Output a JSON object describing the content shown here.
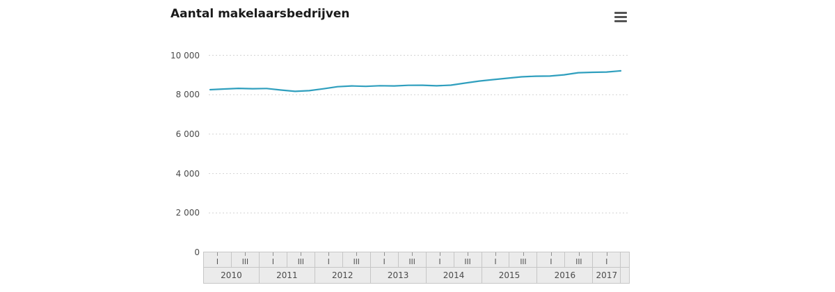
{
  "chart": {
    "title": "Aantal makelaarsbedrijven",
    "export_menu_icon": "hamburger-menu-icon"
  },
  "colors": {
    "series_line": "#2f9fbe",
    "gridline": "#d2d2d2",
    "axis_text": "#4a4a4a",
    "band_background": "#ebebeb",
    "band_border": "#c6c6c6"
  },
  "chart_data": {
    "type": "line",
    "title": "Aantal makelaarsbedrijven",
    "ylabel": "",
    "xlabel": "",
    "ylim": [
      0,
      10000
    ],
    "grid": "dotted horizontal gridlines",
    "legend": "none",
    "yticks": [
      {
        "value": 10000,
        "label": "10 000"
      },
      {
        "value": 8000,
        "label": "8 000"
      },
      {
        "value": 6000,
        "label": "6 000"
      },
      {
        "value": 4000,
        "label": "4 000"
      },
      {
        "value": 2000,
        "label": "2 000"
      },
      {
        "value": 0,
        "label": "0"
      }
    ],
    "x_axis": {
      "quarter_tick_labels": [
        "I",
        "III"
      ],
      "years": [
        {
          "label": "2010",
          "quarters": 4
        },
        {
          "label": "2011",
          "quarters": 4
        },
        {
          "label": "2012",
          "quarters": 4
        },
        {
          "label": "2013",
          "quarters": 4
        },
        {
          "label": "2014",
          "quarters": 4
        },
        {
          "label": "2015",
          "quarters": 4
        },
        {
          "label": "2016",
          "quarters": 4
        },
        {
          "label": "2017",
          "quarters": 2
        }
      ]
    },
    "x": [
      "2010-I",
      "2010-II",
      "2010-III",
      "2010-IV",
      "2011-I",
      "2011-II",
      "2011-III",
      "2011-IV",
      "2012-I",
      "2012-II",
      "2012-III",
      "2012-IV",
      "2013-I",
      "2013-II",
      "2013-III",
      "2013-IV",
      "2014-I",
      "2014-II",
      "2014-III",
      "2014-IV",
      "2015-I",
      "2015-II",
      "2015-III",
      "2015-IV",
      "2016-I",
      "2016-II",
      "2016-III",
      "2016-IV",
      "2017-I",
      "2017-II"
    ],
    "series": [
      {
        "name": "Aantal makelaarsbedrijven",
        "color": "#2f9fbe",
        "values": [
          8255,
          8290,
          8320,
          8305,
          8315,
          8235,
          8170,
          8205,
          8300,
          8405,
          8445,
          8425,
          8455,
          8445,
          8475,
          8480,
          8450,
          8485,
          8590,
          8690,
          8765,
          8835,
          8905,
          8940,
          8945,
          9010,
          9115,
          9135,
          9150,
          9210
        ]
      }
    ]
  }
}
